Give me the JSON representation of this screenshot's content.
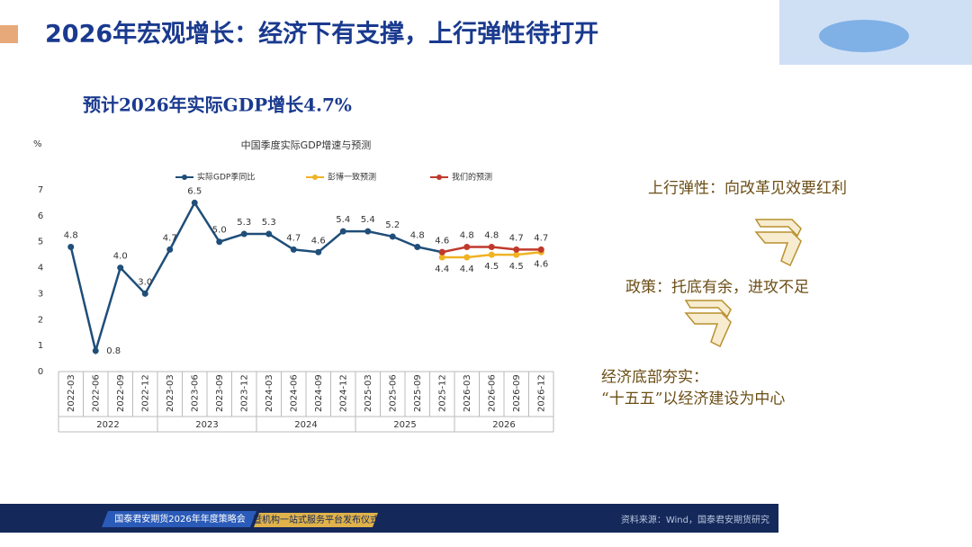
{
  "header": {
    "title": "2026年宏观增长：经济下有支撑，上行弹性待打开"
  },
  "subtitle": "预计2026年实际GDP增长4.7%",
  "points": [
    "上行弹性：向改革见效要红利",
    "政策：托底有余，进攻不足",
    "经济底部夯实：",
    "“十五五”以经济建设为中心"
  ],
  "footer": {
    "event": "国泰君安期货2026年年度策略会",
    "event2": "暨机构一站式服务平台发布仪式",
    "source": "资料来源：Wind，国泰君安期货研究"
  },
  "chart_data": {
    "type": "line",
    "title": "中国季度实际GDP增速与预测",
    "y_label": "%",
    "categories": [
      "2022-03",
      "2022-06",
      "2022-09",
      "2022-12",
      "2023-03",
      "2023-06",
      "2023-09",
      "2023-12",
      "2024-03",
      "2024-06",
      "2024-09",
      "2024-12",
      "2025-03",
      "2025-06",
      "2025-09",
      "2025-12",
      "2026-03",
      "2026-06",
      "2026-09",
      "2026-12"
    ],
    "years": [
      "2022",
      "2023",
      "2024",
      "2025",
      "2026"
    ],
    "ylim": [
      0,
      7
    ],
    "yticks": [
      0,
      1,
      2,
      3,
      4,
      5,
      6,
      7
    ],
    "series": [
      {
        "name": "实际GDP季同比",
        "color": "#1f4e79",
        "values": [
          4.8,
          0.8,
          4.0,
          3.0,
          4.7,
          6.5,
          5.0,
          5.3,
          5.3,
          4.7,
          4.6,
          5.4,
          5.4,
          5.2,
          4.8,
          4.6,
          null,
          null,
          null,
          null
        ],
        "value_labels": [
          "4.8",
          "0.8",
          "4.0",
          "3.0",
          "4.7",
          "6.5",
          "5.0",
          "5.3",
          "5.3",
          "4.7",
          "4.6",
          "5.4",
          "5.4",
          "5.2",
          "4.8",
          "4.6",
          null,
          null,
          null,
          null
        ]
      },
      {
        "name": "彭博一致预测",
        "color": "#f0b323",
        "values": [
          null,
          null,
          null,
          null,
          null,
          null,
          null,
          null,
          null,
          null,
          null,
          null,
          null,
          null,
          null,
          4.4,
          4.4,
          4.5,
          4.5,
          4.6
        ],
        "value_labels": [
          null,
          null,
          null,
          null,
          null,
          null,
          null,
          null,
          null,
          null,
          null,
          null,
          null,
          null,
          null,
          "4.4",
          "4.4",
          "4.5",
          "4.5",
          "4.6"
        ]
      },
      {
        "name": "我们的预测",
        "color": "#c0392b",
        "values": [
          null,
          null,
          null,
          null,
          null,
          null,
          null,
          null,
          null,
          null,
          null,
          null,
          null,
          null,
          null,
          4.6,
          4.8,
          4.8,
          4.7,
          4.7
        ],
        "value_labels": [
          null,
          null,
          null,
          null,
          null,
          null,
          null,
          null,
          null,
          null,
          null,
          null,
          null,
          null,
          null,
          null,
          "4.8",
          "4.8",
          "4.7",
          "4.7"
        ]
      }
    ]
  }
}
